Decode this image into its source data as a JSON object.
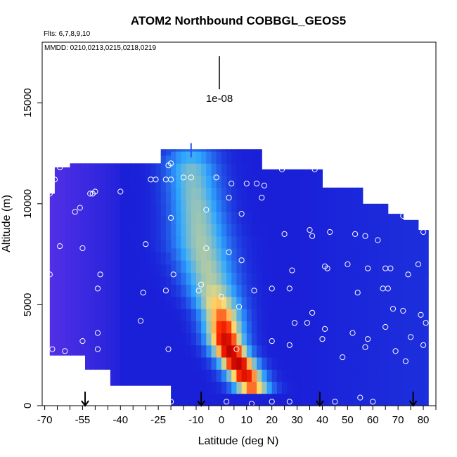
{
  "chart_data": {
    "type": "heatmap",
    "title": "ATOM2 Northbound COBBGL_GEOS5",
    "subtitle_flights": "Flts: 6,7,8,9,10",
    "subtitle_dates": "MMDD: 0210,0213,0215,0218,0219",
    "xlabel": "Latitude (deg N)",
    "ylabel": "Altitude (m)",
    "xlim": [
      -71,
      85
    ],
    "ylim": [
      0,
      18000
    ],
    "x_ticks": [
      -70,
      -55,
      -40,
      -25,
      -10,
      0,
      10,
      20,
      30,
      40,
      50,
      60,
      70,
      80
    ],
    "x_minor_step": 5,
    "y_ticks": [
      0,
      5000,
      10000,
      15000
    ],
    "scale_label": "1e-08",
    "colors": {
      "low": "#7a3af0",
      "mid": "#1a20d8",
      "light": "#30a8ff",
      "high": "#ff2a00",
      "peak": "#c00000",
      "edge": "#ffe070"
    },
    "plume": [
      {
        "alt": 12000,
        "lat": -12,
        "width": 10,
        "intensity": 0.4
      },
      {
        "alt": 10000,
        "lat": -10,
        "width": 10,
        "intensity": 0.45
      },
      {
        "alt": 8000,
        "lat": -8,
        "width": 11,
        "intensity": 0.48
      },
      {
        "alt": 6000,
        "lat": -4,
        "width": 10,
        "intensity": 0.5
      },
      {
        "alt": 4500,
        "lat": 0,
        "width": 8,
        "intensity": 0.75
      },
      {
        "alt": 3000,
        "lat": 2,
        "width": 7,
        "intensity": 1.0
      },
      {
        "alt": 1800,
        "lat": 8,
        "width": 7,
        "intensity": 1.0
      },
      {
        "alt": 900,
        "lat": 12,
        "width": 7,
        "intensity": 0.75
      }
    ],
    "arrows_lat": [
      -54,
      -8,
      39,
      76
    ],
    "sample_points": [
      [
        -68,
        10500
      ],
      [
        -68,
        6500
      ],
      [
        -66,
        11200
      ],
      [
        -64,
        7900
      ],
      [
        -67,
        2800
      ],
      [
        -62,
        2700
      ],
      [
        -64,
        11800
      ],
      [
        -58,
        9600
      ],
      [
        -56,
        9800
      ],
      [
        -55,
        7800
      ],
      [
        -55,
        3200
      ],
      [
        -52,
        10500
      ],
      [
        -51,
        10500
      ],
      [
        -49,
        2800
      ],
      [
        -49,
        3600
      ],
      [
        -48,
        6500
      ],
      [
        -49,
        5800
      ],
      [
        -50,
        10600
      ],
      [
        -40,
        10600
      ],
      [
        -32,
        4200
      ],
      [
        -31,
        5600
      ],
      [
        -30,
        8000
      ],
      [
        -28,
        11200
      ],
      [
        -26,
        11200
      ],
      [
        -22,
        11200
      ],
      [
        -20,
        11200
      ],
      [
        -21,
        11900
      ],
      [
        -20,
        12000
      ],
      [
        -22,
        5700
      ],
      [
        -21,
        2800
      ],
      [
        -20,
        200
      ],
      [
        -19,
        6500
      ],
      [
        -20,
        9300
      ],
      [
        -15,
        11300
      ],
      [
        -12,
        11300
      ],
      [
        -9,
        5700
      ],
      [
        -8,
        6000
      ],
      [
        -6,
        7800
      ],
      [
        -6,
        9700
      ],
      [
        -2,
        11300
      ],
      [
        0,
        5400
      ],
      [
        3,
        10300
      ],
      [
        3,
        7600
      ],
      [
        4,
        11000
      ],
      [
        7,
        4900
      ],
      [
        6,
        2800
      ],
      [
        8,
        7200
      ],
      [
        8,
        9500
      ],
      [
        10,
        11000
      ],
      [
        13,
        5700
      ],
      [
        14,
        11000
      ],
      [
        16,
        10300
      ],
      [
        17,
        10900
      ],
      [
        20,
        5800
      ],
      [
        20,
        3200
      ],
      [
        24,
        11700
      ],
      [
        25,
        8500
      ],
      [
        27,
        5800
      ],
      [
        27,
        3000
      ],
      [
        28,
        6700
      ],
      [
        29,
        4100
      ],
      [
        34,
        4100
      ],
      [
        35,
        8700
      ],
      [
        36,
        8400
      ],
      [
        36,
        4600
      ],
      [
        37,
        11700
      ],
      [
        41,
        6900
      ],
      [
        40,
        3300
      ],
      [
        42,
        6800
      ],
      [
        41,
        3800
      ],
      [
        43,
        8600
      ],
      [
        48,
        2400
      ],
      [
        50,
        7000
      ],
      [
        53,
        8500
      ],
      [
        52,
        3600
      ],
      [
        54,
        5600
      ],
      [
        57,
        8400
      ],
      [
        58,
        6800
      ],
      [
        57,
        2900
      ],
      [
        58,
        3300
      ],
      [
        62,
        8200
      ],
      [
        64,
        5800
      ],
      [
        65,
        3900
      ],
      [
        65,
        6800
      ],
      [
        66,
        5800
      ],
      [
        67,
        6800
      ],
      [
        68,
        4800
      ],
      [
        69,
        2700
      ],
      [
        72,
        9400
      ],
      [
        72,
        4700
      ],
      [
        73,
        2200
      ],
      [
        74,
        6500
      ],
      [
        75,
        3400
      ],
      [
        78,
        7000
      ],
      [
        79,
        4500
      ],
      [
        79,
        9300
      ],
      [
        80,
        8600
      ],
      [
        81,
        4100
      ],
      [
        80,
        3000
      ],
      [
        55,
        400
      ],
      [
        60,
        200
      ],
      [
        45,
        200
      ],
      [
        27,
        200
      ],
      [
        20,
        200
      ],
      [
        2,
        200
      ],
      [
        12,
        100
      ]
    ]
  }
}
